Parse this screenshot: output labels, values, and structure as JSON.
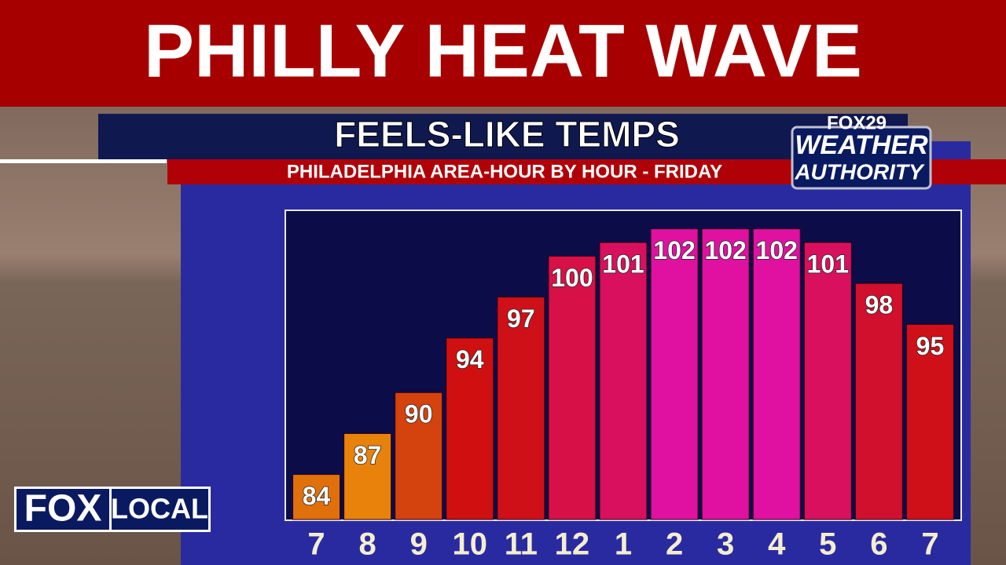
{
  "header": {
    "title": "PHILLY HEAT WAVE"
  },
  "logos": {
    "station": "FOX29",
    "brand_top": "WEATHER",
    "brand_bottom": "AUTHORITY",
    "corner_left": "FOX",
    "corner_right": "LOCAL"
  },
  "chart_data": {
    "type": "bar",
    "title": "FEELS-LIKE TEMPS",
    "subtitle": "PHILADELPHIA AREA-HOUR BY HOUR - FRIDAY",
    "categories": [
      "7",
      "8",
      "9",
      "10",
      "11",
      "12",
      "1",
      "2",
      "3",
      "4",
      "5",
      "6",
      "7"
    ],
    "values": [
      84,
      87,
      90,
      94,
      97,
      100,
      101,
      102,
      102,
      102,
      101,
      98,
      95
    ],
    "colors": [
      "#e0700c",
      "#e8820a",
      "#d4420e",
      "#d01010",
      "#cf1018",
      "#d81048",
      "#d8105e",
      "#e010a0",
      "#e010a0",
      "#e010a0",
      "#d8105e",
      "#d0102c",
      "#d01018"
    ],
    "ylim": [
      80.7,
      103.3
    ]
  }
}
